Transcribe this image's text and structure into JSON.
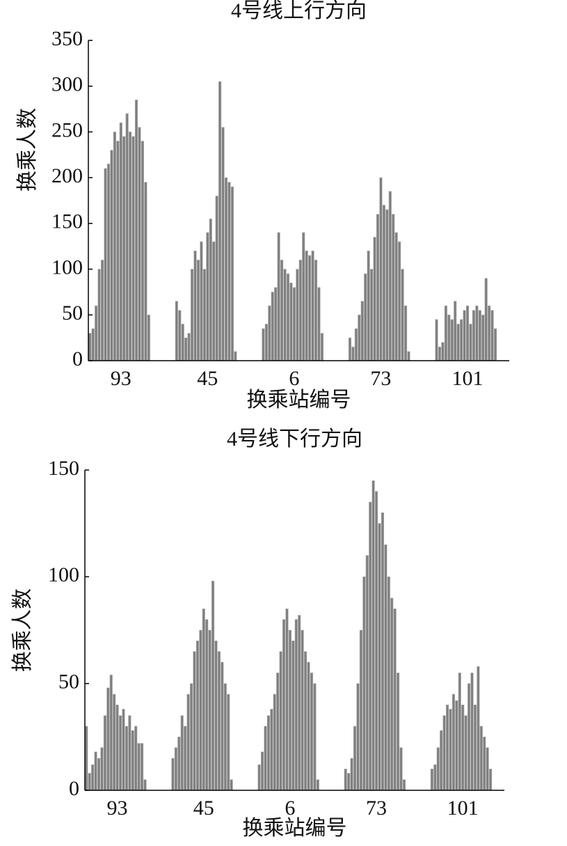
{
  "chart_data": [
    {
      "type": "bar",
      "title": "4号线上行方向",
      "x_label": "换乘站编号",
      "y_label": "换乘人数",
      "color": "#7f7f7f",
      "categories": [
        null,
        null,
        null,
        null,
        null,
        null,
        null,
        null,
        null,
        null,
        "93",
        null,
        null,
        null,
        null,
        null,
        null,
        null,
        null,
        null,
        null,
        null,
        null,
        null,
        null,
        null,
        null,
        null,
        null,
        null,
        null,
        null,
        null,
        null,
        null,
        null,
        null,
        null,
        "45",
        null,
        null,
        null,
        null,
        null,
        null,
        null,
        null,
        null,
        null,
        null,
        null,
        null,
        null,
        null,
        null,
        null,
        null,
        null,
        null,
        null,
        null,
        null,
        null,
        null,
        null,
        null,
        "6",
        null,
        null,
        null,
        null,
        null,
        null,
        null,
        null,
        null,
        null,
        null,
        null,
        null,
        null,
        null,
        null,
        null,
        null,
        null,
        null,
        null,
        null,
        null,
        null,
        null,
        null,
        null,
        "73",
        null,
        null,
        null,
        null,
        null,
        null,
        null,
        null,
        null,
        null,
        null,
        null,
        null,
        null,
        null,
        null,
        null,
        null,
        null,
        null,
        null,
        null,
        null,
        null,
        null,
        null,
        null,
        "101",
        null,
        null,
        null,
        null,
        null,
        null,
        null,
        null,
        null,
        null,
        null,
        null,
        null
      ],
      "values": [
        30,
        35,
        60,
        100,
        110,
        210,
        215,
        230,
        250,
        240,
        260,
        245,
        270,
        250,
        245,
        285,
        255,
        240,
        195,
        50,
        null,
        null,
        null,
        null,
        null,
        null,
        null,
        null,
        65,
        55,
        40,
        25,
        30,
        100,
        120,
        110,
        130,
        100,
        140,
        155,
        130,
        180,
        305,
        255,
        200,
        195,
        190,
        10,
        null,
        null,
        null,
        null,
        null,
        null,
        null,
        null,
        35,
        40,
        60,
        75,
        80,
        140,
        110,
        100,
        95,
        85,
        80,
        100,
        110,
        140,
        120,
        115,
        120,
        110,
        80,
        30,
        null,
        null,
        null,
        null,
        null,
        null,
        null,
        null,
        25,
        15,
        35,
        50,
        65,
        95,
        120,
        100,
        135,
        160,
        200,
        170,
        165,
        185,
        160,
        140,
        130,
        100,
        60,
        10,
        null,
        null,
        null,
        null,
        null,
        null,
        null,
        null,
        45,
        15,
        20,
        60,
        50,
        45,
        65,
        40,
        45,
        55,
        60,
        40,
        55,
        60,
        55,
        50,
        90,
        60,
        55,
        35,
        null,
        null,
        null,
        null
      ],
      "ylim": [
        0,
        350
      ],
      "yticks": [
        0,
        50,
        100,
        150,
        200,
        250,
        300,
        350
      ]
    },
    {
      "type": "bar",
      "title": "4号线下行方向",
      "x_label": "换乘站编号",
      "y_label": "换乘人数",
      "color": "#7f7f7f",
      "categories": [
        null,
        null,
        null,
        null,
        null,
        null,
        null,
        null,
        null,
        null,
        "93",
        null,
        null,
        null,
        null,
        null,
        null,
        null,
        null,
        null,
        null,
        null,
        null,
        null,
        null,
        null,
        null,
        null,
        null,
        null,
        null,
        null,
        null,
        null,
        null,
        null,
        null,
        null,
        "45",
        null,
        null,
        null,
        null,
        null,
        null,
        null,
        null,
        null,
        null,
        null,
        null,
        null,
        null,
        null,
        null,
        null,
        null,
        null,
        null,
        null,
        null,
        null,
        null,
        null,
        null,
        null,
        "6",
        null,
        null,
        null,
        null,
        null,
        null,
        null,
        null,
        null,
        null,
        null,
        null,
        null,
        null,
        null,
        null,
        null,
        null,
        null,
        null,
        null,
        null,
        null,
        null,
        null,
        null,
        null,
        "73",
        null,
        null,
        null,
        null,
        null,
        null,
        null,
        null,
        null,
        null,
        null,
        null,
        null,
        null,
        null,
        null,
        null,
        null,
        null,
        null,
        null,
        null,
        null,
        null,
        null,
        null,
        null,
        "101",
        null,
        null,
        null,
        null,
        null,
        null,
        null,
        null,
        null,
        null,
        null,
        null,
        null
      ],
      "values": [
        30,
        8,
        12,
        18,
        15,
        20,
        35,
        48,
        54,
        45,
        40,
        35,
        38,
        30,
        35,
        28,
        30,
        22,
        22,
        5,
        null,
        null,
        null,
        null,
        null,
        null,
        null,
        null,
        15,
        20,
        25,
        35,
        30,
        45,
        50,
        65,
        70,
        75,
        85,
        80,
        75,
        98,
        70,
        65,
        60,
        50,
        45,
        5,
        null,
        null,
        null,
        null,
        null,
        null,
        null,
        null,
        12,
        18,
        30,
        35,
        38,
        45,
        55,
        65,
        80,
        85,
        75,
        70,
        80,
        82,
        75,
        65,
        60,
        55,
        50,
        5,
        null,
        null,
        null,
        null,
        null,
        null,
        null,
        null,
        10,
        8,
        15,
        30,
        50,
        75,
        100,
        110,
        135,
        145,
        140,
        125,
        130,
        115,
        100,
        90,
        85,
        55,
        20,
        5,
        null,
        null,
        null,
        null,
        null,
        null,
        null,
        null,
        10,
        12,
        20,
        28,
        35,
        40,
        38,
        45,
        42,
        55,
        40,
        35,
        50,
        55,
        40,
        58,
        30,
        25,
        20,
        10,
        null,
        null,
        null,
        null
      ],
      "ylim": [
        0,
        150
      ],
      "yticks": [
        0,
        50,
        100,
        150
      ]
    }
  ]
}
